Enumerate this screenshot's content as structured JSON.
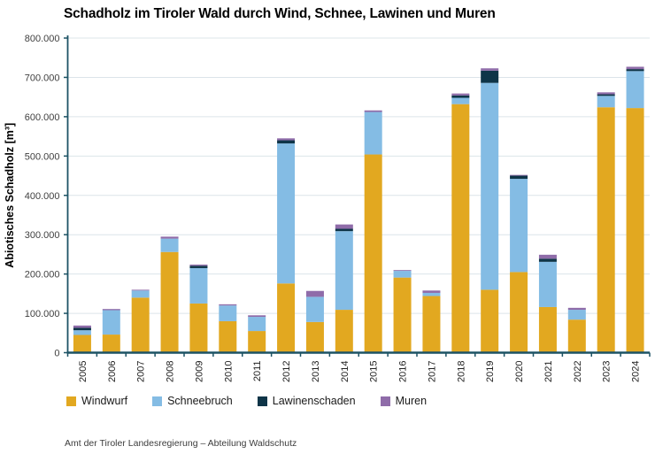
{
  "chart_data": {
    "type": "bar",
    "stacked": true,
    "title": "Schadholz im Tiroler Wald durch Wind, Schnee, Lawinen und Muren",
    "ylabel": "Abiotisches Schadholz [m³]",
    "xlabel": "",
    "ylim": [
      0,
      800000
    ],
    "ytick_step": 100000,
    "grid": true,
    "legend_position": "bottom",
    "categories": [
      "2005",
      "2006",
      "2007",
      "2008",
      "2009",
      "2010",
      "2011",
      "2012",
      "2013",
      "2014",
      "2015",
      "2016",
      "2017",
      "2018",
      "2019",
      "2020",
      "2021",
      "2022",
      "2023",
      "2024"
    ],
    "series": [
      {
        "name": "Windwurf",
        "color": "#E2A820",
        "values": [
          45000,
          46000,
          140000,
          256000,
          125000,
          80000,
          55000,
          176000,
          78000,
          109000,
          504000,
          191000,
          144000,
          632000,
          160000,
          205000,
          116000,
          84000,
          624000,
          622000
        ]
      },
      {
        "name": "Schneebruch",
        "color": "#84BCE4",
        "values": [
          12000,
          62000,
          18000,
          34000,
          90000,
          40000,
          36000,
          356000,
          64000,
          200000,
          108000,
          17000,
          8000,
          16000,
          526000,
          237000,
          115000,
          25000,
          29000,
          94000
        ]
      },
      {
        "name": "Lawinenschaden",
        "color": "#0F3548",
        "values": [
          6000,
          0,
          0,
          0,
          6000,
          0,
          0,
          8000,
          0,
          6000,
          0,
          0,
          0,
          6000,
          31000,
          8000,
          8000,
          0,
          4000,
          5000
        ]
      },
      {
        "name": "Muren",
        "color": "#8F6CA9",
        "values": [
          6000,
          3000,
          2000,
          5000,
          3000,
          3000,
          4000,
          5000,
          15000,
          11000,
          4000,
          2000,
          6000,
          5000,
          6000,
          2000,
          10000,
          5000,
          5000,
          6000
        ]
      }
    ],
    "axis_color": "#1D5365",
    "grid_color": "#DCE4E9",
    "tick_label_color": "#404040"
  },
  "footer": {
    "credit": "Amt der Tiroler Landesregierung – Abteilung Waldschutz"
  }
}
